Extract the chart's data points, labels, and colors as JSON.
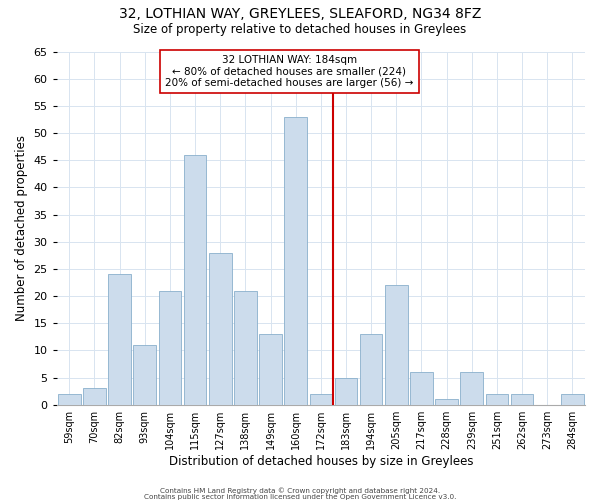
{
  "title": "32, LOTHIAN WAY, GREYLEES, SLEAFORD, NG34 8FZ",
  "subtitle": "Size of property relative to detached houses in Greylees",
  "xlabel": "Distribution of detached houses by size in Greylees",
  "ylabel": "Number of detached properties",
  "bar_labels": [
    "59sqm",
    "70sqm",
    "82sqm",
    "93sqm",
    "104sqm",
    "115sqm",
    "127sqm",
    "138sqm",
    "149sqm",
    "160sqm",
    "172sqm",
    "183sqm",
    "194sqm",
    "205sqm",
    "217sqm",
    "228sqm",
    "239sqm",
    "251sqm",
    "262sqm",
    "273sqm",
    "284sqm"
  ],
  "bar_heights": [
    2,
    3,
    24,
    11,
    21,
    46,
    28,
    21,
    13,
    53,
    2,
    5,
    13,
    22,
    6,
    1,
    6,
    2,
    2,
    0,
    2
  ],
  "bar_color": "#ccdcec",
  "bar_edge_color": "#8ab0cc",
  "vline_x_index": 11,
  "vline_color": "#cc0000",
  "ylim": [
    0,
    65
  ],
  "yticks": [
    0,
    5,
    10,
    15,
    20,
    25,
    30,
    35,
    40,
    45,
    50,
    55,
    60,
    65
  ],
  "annotation_title": "32 LOTHIAN WAY: 184sqm",
  "annotation_line1": "← 80% of detached houses are smaller (224)",
  "annotation_line2": "20% of semi-detached houses are larger (56) →",
  "footnote1": "Contains HM Land Registry data © Crown copyright and database right 2024.",
  "footnote2": "Contains public sector information licensed under the Open Government Licence v3.0.",
  "background_color": "#ffffff",
  "grid_color": "#d8e4f0"
}
